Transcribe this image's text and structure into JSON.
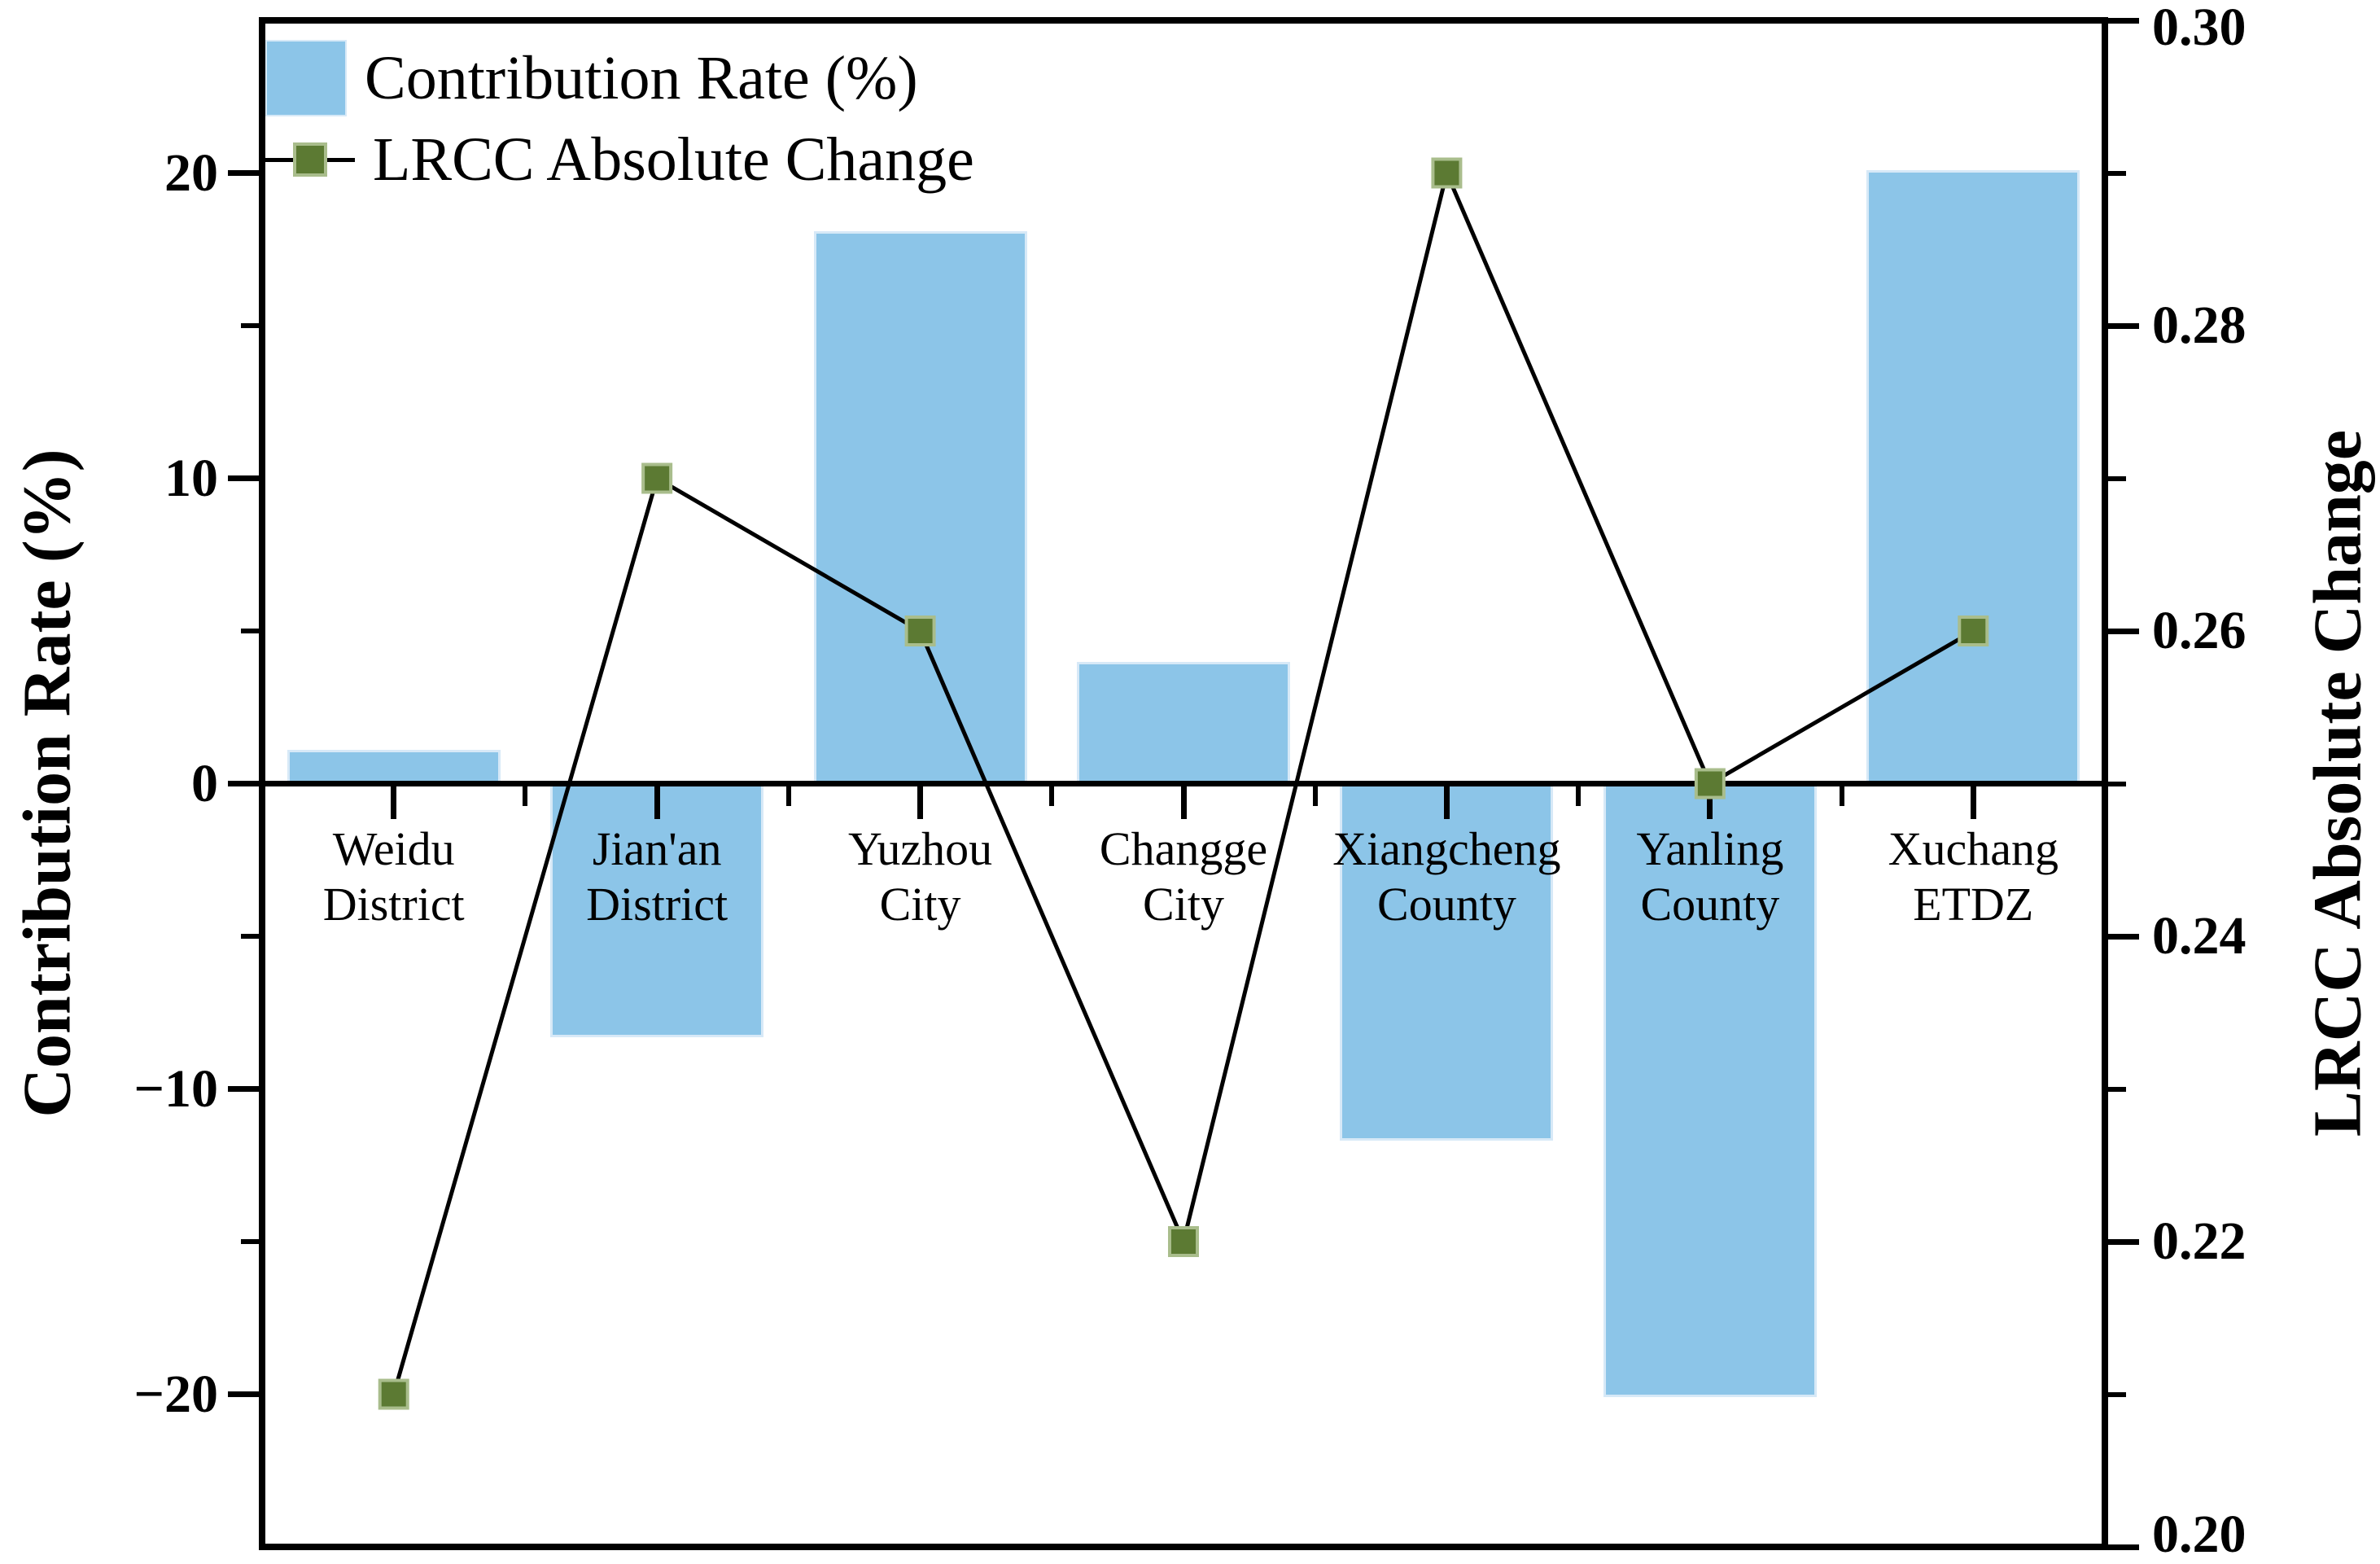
{
  "figure": {
    "background": "#ffffff"
  },
  "chart_data": {
    "type": "bar",
    "title": "",
    "categories": [
      "Weidu District",
      "Jian'an District",
      "Yuzhou City",
      "Changge City",
      "Xiangcheng County",
      "Yanling County",
      "Xuchang ETDZ"
    ],
    "category_label_lines": [
      [
        "Weidu",
        "District"
      ],
      [
        "Jian'an",
        "District"
      ],
      [
        "Yuzhou",
        "City"
      ],
      [
        "Changge",
        "City"
      ],
      [
        "Xiangcheng",
        "County"
      ],
      [
        "Yanling",
        "County"
      ],
      [
        "Xuchang",
        "ETDZ"
      ]
    ],
    "series": [
      {
        "name": "Contribution Rate (%)",
        "type": "bar",
        "axis": "left",
        "color": "#8CC5E8",
        "edge_color": "#D7E9F7",
        "values": [
          1.1,
          -8.3,
          18.1,
          4.0,
          -11.7,
          -20.1,
          20.1
        ]
      },
      {
        "name": "LRCC Absolute Change",
        "type": "line",
        "axis": "right",
        "line_color": "#000000",
        "marker": "square",
        "marker_color": "#5C7A33",
        "marker_edge_color": "#A9BD8C",
        "values": [
          0.21,
          0.27,
          0.26,
          0.22,
          0.29,
          0.25,
          0.26
        ]
      }
    ],
    "left_axis": {
      "label": "Contribution Rate (%)",
      "range": [
        -25,
        25
      ],
      "major_ticks": [
        {
          "v": 20,
          "label": "20"
        },
        {
          "v": 10,
          "label": "10"
        },
        {
          "v": 0,
          "label": "0"
        },
        {
          "v": -10,
          "label": "−10"
        },
        {
          "v": -20,
          "label": "−20"
        }
      ],
      "minor_ticks": [
        15,
        5,
        -5,
        -15
      ]
    },
    "right_axis": {
      "label": "LRCC Absolute Change",
      "range": [
        0.2,
        0.3
      ],
      "major_ticks": [
        {
          "v": 0.3,
          "label": "0.30"
        },
        {
          "v": 0.28,
          "label": "0.28"
        },
        {
          "v": 0.26,
          "label": "0.26"
        },
        {
          "v": 0.24,
          "label": "0.24"
        },
        {
          "v": 0.22,
          "label": "0.22"
        },
        {
          "v": 0.2,
          "label": "0.20"
        }
      ],
      "minor_ticks": [
        0.29,
        0.27,
        0.25,
        0.23,
        0.21
      ]
    },
    "x_axis": {
      "zero_line": true,
      "boundary_minor_ticks": true
    },
    "grid": false,
    "legend_position": "upper-left"
  }
}
